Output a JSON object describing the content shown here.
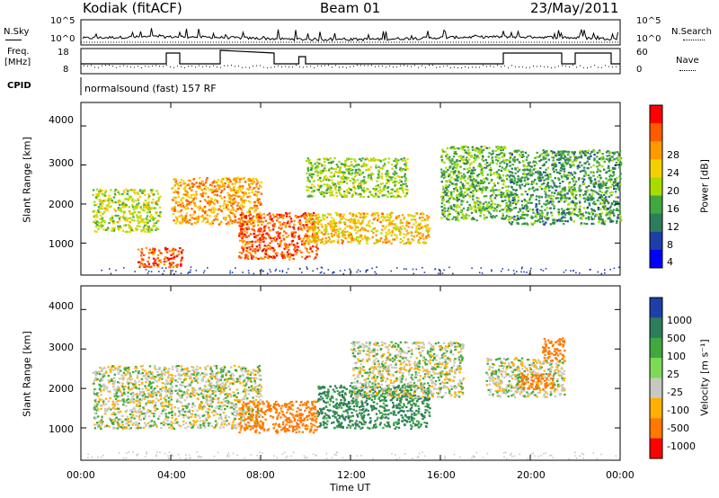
{
  "header": {
    "station": "Kodiak (fitACF)",
    "beam": "Beam 01",
    "date": "23/May/2011"
  },
  "summary_panels": {
    "nsky_label": "N.Sky",
    "nsearch_label": "N.Search",
    "count_ticks": [
      "10^5",
      "10^0"
    ],
    "freq_label": "Freq.",
    "freq_unit": "[MHz]",
    "freq_ticks": [
      "18",
      "8"
    ],
    "nave_label": "Nave",
    "nave_ticks": [
      "60",
      "0"
    ],
    "cpid_label": "CPID",
    "cpid_text": "normalsound (fast) 157 RF"
  },
  "panels": {
    "ylabel": "Slant Range [km]",
    "yticks": [
      "4000",
      "3000",
      "2000",
      "1000"
    ],
    "xticks": [
      "00:00",
      "04:00",
      "08:00",
      "12:00",
      "16:00",
      "20:00",
      "00:00"
    ],
    "xlabel": "Time UT"
  },
  "colorbars": {
    "power": {
      "label": "Power [dB]",
      "ticks": [
        "28",
        "24",
        "20",
        "16",
        "12",
        "8",
        "4"
      ],
      "colors": [
        "#ff0000",
        "#ff5a00",
        "#ff9a00",
        "#f5d000",
        "#a8dc00",
        "#3fa83f",
        "#2e7d5a",
        "#1e3fa8",
        "#0000ff"
      ]
    },
    "velocity": {
      "label": "Velocity [m s⁻¹]",
      "ticks": [
        "1000",
        "500",
        "100",
        "25",
        "-25",
        "-100",
        "-500",
        "-1000"
      ],
      "colors": [
        "#1e3fa8",
        "#2e7d5a",
        "#3fa83f",
        "#7ed957",
        "#c8c8c0",
        "#ffb000",
        "#ff7800",
        "#ff0000"
      ]
    }
  },
  "chart_data": [
    {
      "type": "heatmap",
      "title": "",
      "xlabel": "",
      "ylabel": "Slant Range [km]",
      "x_range_ut": [
        "00:00",
        "24:00"
      ],
      "ylim": [
        180,
        4600
      ],
      "quantity": "Power [dB]",
      "scale_range": [
        0,
        30
      ],
      "echo_regions": [
        {
          "t": [
            0.5,
            3.5
          ],
          "range": [
            1300,
            2400
          ],
          "value": 16
        },
        {
          "t": [
            2.5,
            4.5
          ],
          "range": [
            400,
            900
          ],
          "value": 26
        },
        {
          "t": [
            4.0,
            8.0
          ],
          "range": [
            1500,
            2700
          ],
          "value": 22
        },
        {
          "t": [
            7.0,
            10.5
          ],
          "range": [
            600,
            1800
          ],
          "value": 26
        },
        {
          "t": [
            10.0,
            15.5
          ],
          "range": [
            1000,
            1800
          ],
          "value": 20
        },
        {
          "t": [
            10.0,
            14.5
          ],
          "range": [
            2200,
            3200
          ],
          "value": 14
        },
        {
          "t": [
            16.0,
            19.0
          ],
          "range": [
            1600,
            3500
          ],
          "value": 12
        },
        {
          "t": [
            19.0,
            24.0
          ],
          "range": [
            1500,
            3400
          ],
          "value": 10
        }
      ]
    },
    {
      "type": "heatmap",
      "title": "",
      "xlabel": "Time UT",
      "ylabel": "Slant Range [km]",
      "x_range_ut": [
        "00:00",
        "24:00"
      ],
      "ylim": [
        180,
        4600
      ],
      "quantity": "Velocity [m s⁻¹]",
      "scale_range": [
        -1000,
        1000
      ],
      "echo_regions": [
        {
          "t": [
            0.5,
            8.0
          ],
          "range": [
            1000,
            2600
          ],
          "value": 0
        },
        {
          "t": [
            7.0,
            10.5
          ],
          "range": [
            900,
            1700
          ],
          "value": -150
        },
        {
          "t": [
            10.5,
            15.5
          ],
          "range": [
            1000,
            2100
          ],
          "value": 120
        },
        {
          "t": [
            12.0,
            17.0
          ],
          "range": [
            1800,
            3200
          ],
          "value": 0
        },
        {
          "t": [
            18.0,
            21.5
          ],
          "range": [
            1800,
            2800
          ],
          "value": 0
        },
        {
          "t": [
            19.5,
            21.0
          ],
          "range": [
            2000,
            2400
          ],
          "value": -200
        },
        {
          "t": [
            20.5,
            21.5
          ],
          "range": [
            2700,
            3300
          ],
          "value": -200
        }
      ]
    }
  ]
}
